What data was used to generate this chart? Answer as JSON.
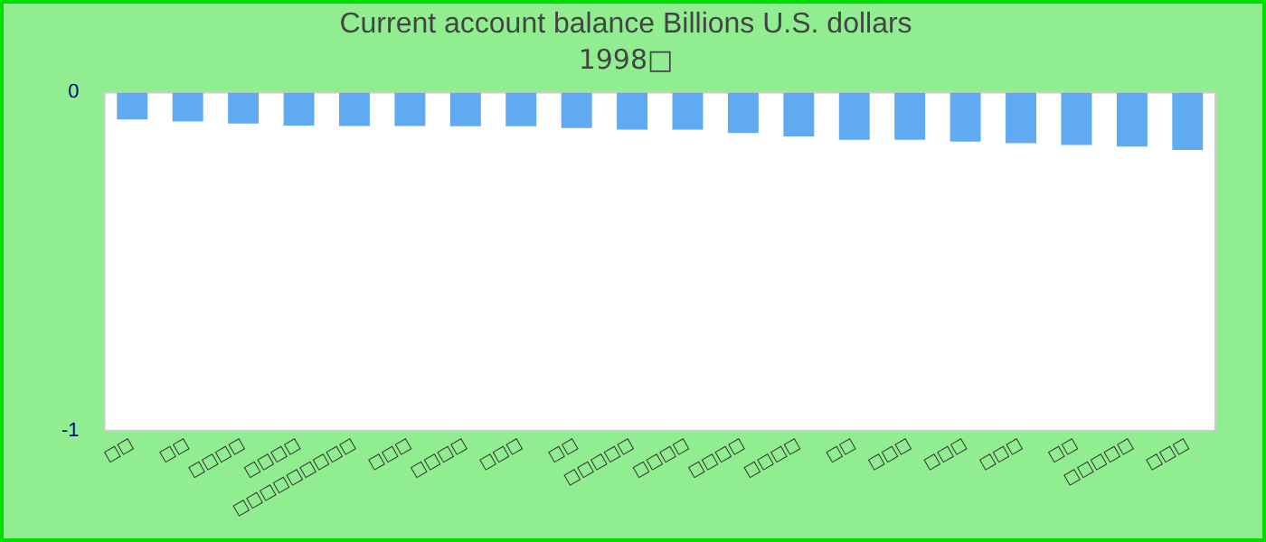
{
  "chart_data": {
    "type": "bar",
    "title": "Current account balance Billions U.S. dollars",
    "subtitle": "1998□",
    "categories": [
      "□□",
      "□□",
      "□□□□",
      "□□□□",
      "□□□□□□□□□",
      "□□□",
      "□□□□",
      "□□□",
      "□□",
      "□□□□□",
      "□□□□",
      "□□□□",
      "□□□□",
      "□□",
      "□□□",
      "□□□",
      "□□□",
      "□□",
      "□□□□□",
      "□□□"
    ],
    "values": [
      -0.08,
      -0.086,
      -0.092,
      -0.098,
      -0.099,
      -0.099,
      -0.1,
      -0.1,
      -0.105,
      -0.11,
      -0.11,
      -0.12,
      -0.13,
      -0.14,
      -0.14,
      -0.145,
      -0.15,
      -0.155,
      -0.16,
      -0.17
    ],
    "color": "#60aaf2",
    "ylim": [
      -1,
      0
    ],
    "yticks": [
      -1,
      0
    ],
    "grid": false,
    "legend": false
  }
}
